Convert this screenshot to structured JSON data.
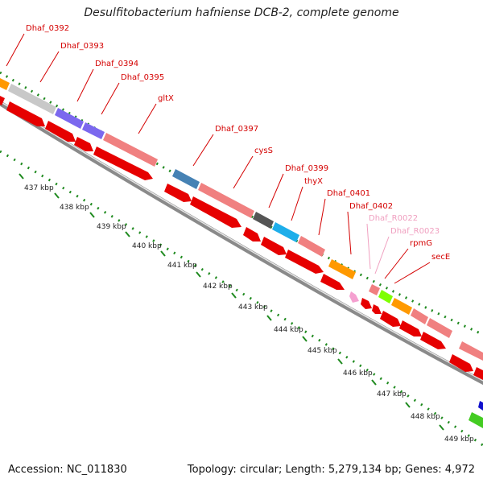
{
  "title": "Desulfitobacterium hafniense DCB-2, complete genome",
  "footer": {
    "accession": "Accession: NC_011830",
    "summary": "Topology: circular; Length: 5,279,134 bp; Genes: 4,972"
  },
  "colors": {
    "backbone": "#9a9a9a",
    "ticks": "#1f8a1f",
    "cds_strand": "#e60000",
    "label": "#d40000",
    "rna_label": "#f0a0c0",
    "tick_label": "#222222"
  },
  "scale_labels": [
    "437 kbp",
    "438 kbp",
    "439 kbp",
    "440 kbp",
    "441 kbp",
    "442 kbp",
    "443 kbp",
    "444 kbp",
    "445 kbp",
    "446 kbp",
    "447 kbp",
    "448 kbp",
    "449 kbp"
  ],
  "gene_labels": [
    {
      "text": "Dhaf_0392",
      "type": "cds"
    },
    {
      "text": "Dhaf_0393",
      "type": "cds"
    },
    {
      "text": "Dhaf_0394",
      "type": "cds"
    },
    {
      "text": "Dhaf_0395",
      "type": "cds"
    },
    {
      "text": "gltX",
      "type": "cds"
    },
    {
      "text": "Dhaf_0397",
      "type": "cds"
    },
    {
      "text": "cysS",
      "type": "cds"
    },
    {
      "text": "Dhaf_0399",
      "type": "cds"
    },
    {
      "text": "thyX",
      "type": "cds"
    },
    {
      "text": "Dhaf_0401",
      "type": "cds"
    },
    {
      "text": "Dhaf_0402",
      "type": "cds"
    },
    {
      "text": "Dhaf_R0022",
      "type": "rna"
    },
    {
      "text": "Dhaf_R0023",
      "type": "rna"
    },
    {
      "text": "rpmG",
      "type": "cds"
    },
    {
      "text": "secE",
      "type": "cds"
    }
  ]
}
